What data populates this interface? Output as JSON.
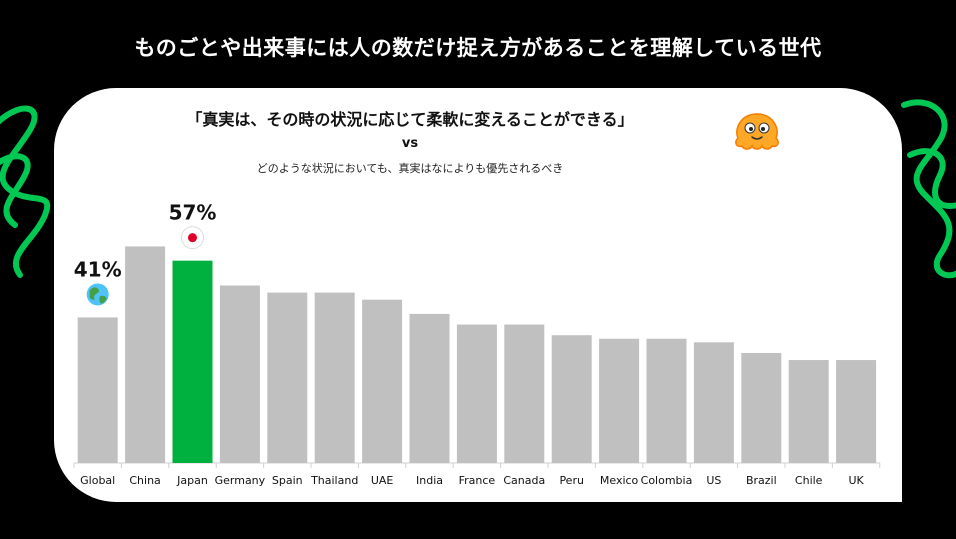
{
  "headline": "ものごとや出来事には人の数だけ捉え方があることを理解している世代",
  "card": {
    "title": "「真実は、その時の状況に応じて柔軟に変えることができる」",
    "vs": "vs",
    "subtitle": "どのような状況においても、真実はなによりも優先されるべき"
  },
  "colors": {
    "background": "#000000",
    "accent_green": "#00b140",
    "bar_gray": "#c0c0c0",
    "squiggle_green": "#00c853"
  },
  "icons": {
    "global": "globe-icon",
    "japan": "japan-flag-icon",
    "mascot": "orange-mascot-icon"
  },
  "chart_data": {
    "type": "bar",
    "categories": [
      "Global",
      "China",
      "Japan",
      "Germany",
      "Spain",
      "Thailand",
      "UAE",
      "India",
      "France",
      "Canada",
      "Peru",
      "Mexico",
      "Colombia",
      "US",
      "Brazil",
      "Chile",
      "UK"
    ],
    "values": [
      41,
      61,
      57,
      50,
      48,
      48,
      46,
      42,
      39,
      39,
      36,
      35,
      35,
      34,
      31,
      29,
      29
    ],
    "highlight_category": "Japan",
    "data_labels": [
      {
        "category": "Global",
        "text": "41%"
      },
      {
        "category": "Japan",
        "text": "57%"
      }
    ],
    "ylim": [
      0,
      70
    ],
    "grid": false,
    "legend": "none"
  }
}
